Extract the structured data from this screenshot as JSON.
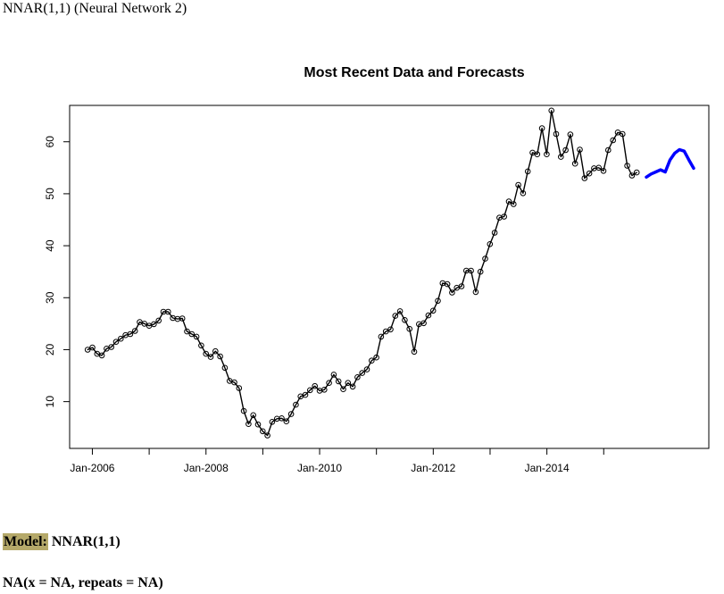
{
  "page": {
    "title": "NNAR(1,1) (Neural Network 2)",
    "model_label": "Model:",
    "model_value": "NNAR(1,1)",
    "footer": "NA(x = NA, repeats = NA)"
  },
  "colors": {
    "history": "#000000",
    "forecast": "#0000ff",
    "model_highlight": "#b5a96a"
  },
  "chart_data": {
    "type": "line",
    "title": "Most Recent Data and Forecasts",
    "xlabel": "",
    "ylabel": "",
    "xlim": [
      2005.6,
      2016.85
    ],
    "ylim": [
      1,
      67
    ],
    "x_ticks": [
      {
        "value": 2006,
        "label": "Jan-2006"
      },
      {
        "value": 2007,
        "label": ""
      },
      {
        "value": 2008,
        "label": "Jan-2008"
      },
      {
        "value": 2009,
        "label": ""
      },
      {
        "value": 2010,
        "label": "Jan-2010"
      },
      {
        "value": 2011,
        "label": ""
      },
      {
        "value": 2012,
        "label": "Jan-2012"
      },
      {
        "value": 2013,
        "label": ""
      },
      {
        "value": 2014,
        "label": "Jan-2014"
      },
      {
        "value": 2015,
        "label": ""
      }
    ],
    "y_ticks": [
      10,
      20,
      30,
      40,
      50,
      60
    ],
    "series": [
      {
        "name": "history",
        "start": 2005.917,
        "step": 0.0833,
        "markers": true,
        "values": [
          20.0,
          20.4,
          19.2,
          18.9,
          20.2,
          20.5,
          21.5,
          22.1,
          22.8,
          23.0,
          23.6,
          25.3,
          25.0,
          24.6,
          24.9,
          25.6,
          27.3,
          27.3,
          26.1,
          25.9,
          26.0,
          23.5,
          23.0,
          22.5,
          20.8,
          19.2,
          18.6,
          19.7,
          18.7,
          16.5,
          14.0,
          13.7,
          12.6,
          8.2,
          5.7,
          7.4,
          5.6,
          4.3,
          3.5,
          6.1,
          6.7,
          6.8,
          6.2,
          7.6,
          9.4,
          11.0,
          11.3,
          12.2,
          13.0,
          12.1,
          12.3,
          13.6,
          15.2,
          13.9,
          12.4,
          13.6,
          12.9,
          14.7,
          15.5,
          16.2,
          17.9,
          18.5,
          22.5,
          23.5,
          23.9,
          26.5,
          27.4,
          25.7,
          24.0,
          19.6,
          24.9,
          25.1,
          26.6,
          27.5,
          29.4,
          32.8,
          32.6,
          31.0,
          31.9,
          32.2,
          35.2,
          35.2,
          31.1,
          35.0,
          37.5,
          40.3,
          42.5,
          45.4,
          45.6,
          48.5,
          48.0,
          51.7,
          50.1,
          54.3,
          57.9,
          57.6,
          62.6,
          57.6,
          66.0,
          61.5,
          57.1,
          58.4,
          61.4,
          55.8,
          58.5,
          53.0,
          53.9,
          54.9,
          55.0,
          54.4,
          58.4,
          60.3,
          61.8,
          61.5,
          55.4,
          53.5,
          54.1
        ]
      },
      {
        "name": "forecast",
        "start": 2015.75,
        "step": 0.0833,
        "markers": false,
        "values": [
          53.2,
          53.8,
          54.2,
          54.6,
          54.2,
          56.5,
          57.8,
          58.5,
          58.2,
          56.5,
          54.9
        ]
      }
    ]
  }
}
